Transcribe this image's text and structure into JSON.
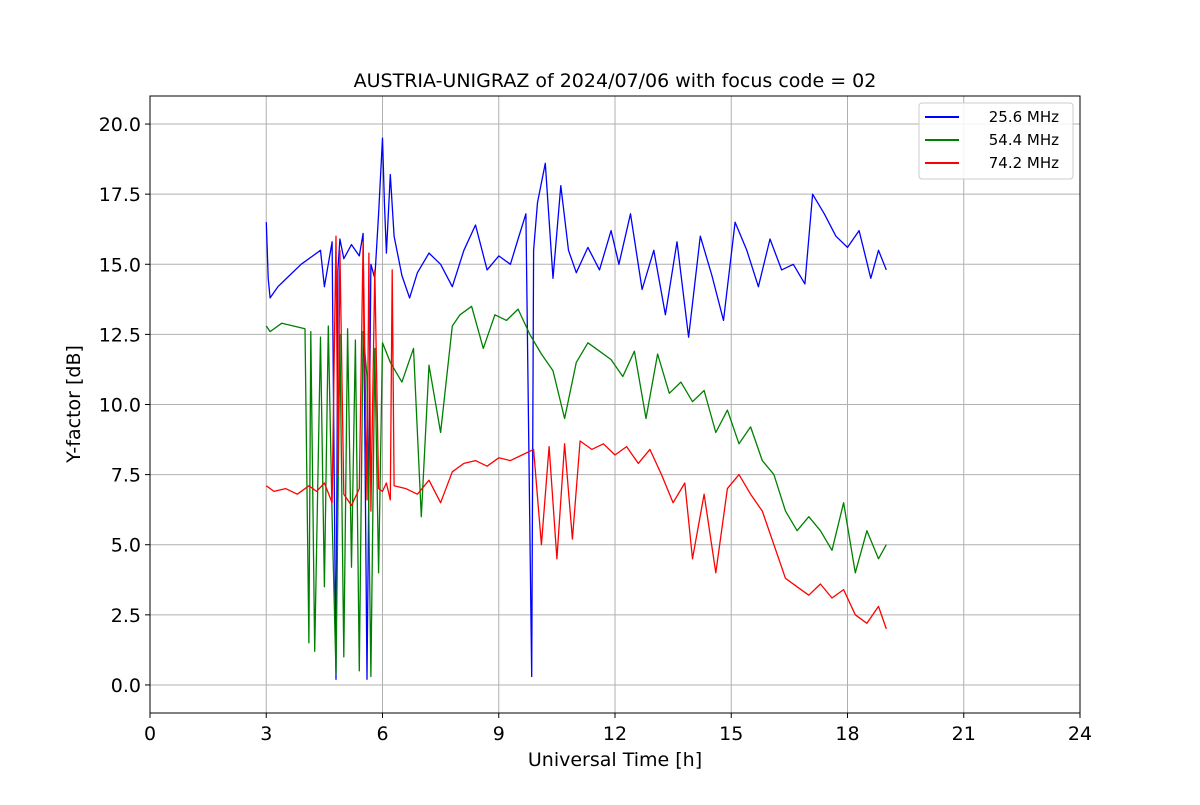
{
  "chart_data": {
    "type": "line",
    "title": "AUSTRIA-UNIGRAZ of 2024/07/06 with focus code = 02",
    "xlabel": "Universal Time [h]",
    "ylabel": "Y-factor [dB]",
    "xlim": [
      0,
      24
    ],
    "ylim": [
      -1,
      21
    ],
    "xticks": [
      0,
      3,
      6,
      9,
      12,
      15,
      18,
      21,
      24
    ],
    "yticks": [
      0.0,
      2.5,
      5.0,
      7.5,
      10.0,
      12.5,
      15.0,
      17.5,
      20.0
    ],
    "xtick_labels": [
      "0",
      "3",
      "6",
      "9",
      "12",
      "15",
      "18",
      "21",
      "24"
    ],
    "ytick_labels": [
      "0.0",
      "2.5",
      "5.0",
      "7.5",
      "10.0",
      "12.5",
      "15.0",
      "17.5",
      "20.0"
    ],
    "grid": true,
    "legend_position": "top-right",
    "series": [
      {
        "name": "25.6 MHz",
        "color": "#0000ff",
        "x": [
          3.0,
          3.05,
          3.1,
          3.3,
          3.6,
          3.9,
          4.2,
          4.4,
          4.5,
          4.7,
          4.8,
          4.85,
          4.9,
          5.0,
          5.2,
          5.4,
          5.5,
          5.6,
          5.7,
          5.8,
          5.9,
          6.0,
          6.05,
          6.1,
          6.2,
          6.3,
          6.5,
          6.7,
          6.9,
          7.2,
          7.5,
          7.8,
          8.1,
          8.4,
          8.7,
          9.0,
          9.3,
          9.5,
          9.7,
          9.85,
          9.9,
          10.0,
          10.2,
          10.4,
          10.6,
          10.8,
          11.0,
          11.3,
          11.6,
          11.9,
          12.1,
          12.4,
          12.7,
          13.0,
          13.3,
          13.6,
          13.9,
          14.2,
          14.5,
          14.8,
          15.1,
          15.4,
          15.7,
          16.0,
          16.3,
          16.6,
          16.9,
          17.1,
          17.4,
          17.7,
          18.0,
          18.3,
          18.6,
          18.8,
          19.0
        ],
        "y": [
          16.5,
          14.5,
          13.8,
          14.2,
          14.6,
          15.0,
          15.3,
          15.5,
          14.2,
          15.8,
          0.2,
          14.8,
          15.9,
          15.2,
          15.7,
          15.3,
          16.1,
          0.2,
          15.0,
          14.5,
          16.8,
          19.5,
          17.2,
          15.4,
          18.2,
          16.0,
          14.6,
          13.8,
          14.7,
          15.4,
          15.0,
          14.2,
          15.5,
          16.4,
          14.8,
          15.3,
          15.0,
          15.9,
          16.8,
          0.3,
          15.5,
          17.2,
          18.6,
          14.5,
          17.8,
          15.5,
          14.7,
          15.6,
          14.8,
          16.2,
          15.0,
          16.8,
          14.1,
          15.5,
          13.2,
          15.8,
          12.4,
          16.0,
          14.6,
          13.0,
          16.5,
          15.5,
          14.2,
          15.9,
          14.8,
          15.0,
          14.3,
          17.5,
          16.8,
          16.0,
          15.6,
          16.2,
          14.5,
          15.5,
          14.8
        ]
      },
      {
        "name": "54.4 MHz",
        "color": "#008000",
        "x": [
          3.0,
          3.1,
          3.4,
          3.7,
          4.0,
          4.1,
          4.15,
          4.25,
          4.4,
          4.5,
          4.6,
          4.7,
          4.8,
          4.9,
          5.0,
          5.1,
          5.2,
          5.3,
          5.4,
          5.5,
          5.6,
          5.7,
          5.8,
          5.9,
          6.0,
          6.2,
          6.5,
          6.8,
          7.0,
          7.2,
          7.5,
          7.8,
          8.0,
          8.3,
          8.6,
          8.9,
          9.2,
          9.5,
          9.8,
          10.1,
          10.4,
          10.7,
          11.0,
          11.3,
          11.6,
          11.9,
          12.2,
          12.5,
          12.8,
          13.1,
          13.4,
          13.7,
          14.0,
          14.3,
          14.6,
          14.9,
          15.2,
          15.5,
          15.8,
          16.1,
          16.4,
          16.7,
          17.0,
          17.3,
          17.6,
          17.9,
          18.2,
          18.5,
          18.8,
          19.0
        ],
        "y": [
          12.8,
          12.6,
          12.9,
          12.8,
          12.7,
          1.5,
          12.6,
          1.2,
          12.4,
          3.5,
          12.8,
          6.0,
          0.4,
          12.5,
          1.0,
          12.7,
          4.2,
          12.3,
          0.5,
          12.6,
          11.0,
          0.3,
          12.0,
          4.0,
          12.2,
          11.5,
          10.8,
          12.0,
          6.0,
          11.4,
          9.0,
          12.8,
          13.2,
          13.5,
          12.0,
          13.2,
          13.0,
          13.4,
          12.5,
          11.8,
          11.2,
          9.5,
          11.5,
          12.2,
          11.9,
          11.6,
          11.0,
          11.9,
          9.5,
          11.8,
          10.4,
          10.8,
          10.1,
          10.5,
          9.0,
          9.8,
          8.6,
          9.2,
          8.0,
          7.5,
          6.2,
          5.5,
          6.0,
          5.5,
          4.8,
          6.5,
          4.0,
          5.5,
          4.5,
          5.0
        ]
      },
      {
        "name": "74.2 MHz",
        "color": "#ff0000",
        "x": [
          3.0,
          3.2,
          3.5,
          3.8,
          4.1,
          4.3,
          4.5,
          4.7,
          4.8,
          4.85,
          4.9,
          5.0,
          5.2,
          5.4,
          5.5,
          5.6,
          5.65,
          5.7,
          5.8,
          5.9,
          6.0,
          6.1,
          6.2,
          6.25,
          6.3,
          6.6,
          6.9,
          7.2,
          7.5,
          7.8,
          8.1,
          8.4,
          8.7,
          9.0,
          9.3,
          9.6,
          9.9,
          10.1,
          10.3,
          10.5,
          10.7,
          10.9,
          11.1,
          11.4,
          11.7,
          12.0,
          12.3,
          12.6,
          12.9,
          13.2,
          13.5,
          13.8,
          14.0,
          14.3,
          14.6,
          14.9,
          15.2,
          15.5,
          15.8,
          16.1,
          16.4,
          16.7,
          17.0,
          17.3,
          17.6,
          17.9,
          18.2,
          18.5,
          18.8,
          19.0
        ],
        "y": [
          7.1,
          6.9,
          7.0,
          6.8,
          7.1,
          6.9,
          7.2,
          6.5,
          16.0,
          7.5,
          15.5,
          6.8,
          6.4,
          7.0,
          15.8,
          6.6,
          15.4,
          6.2,
          14.8,
          7.0,
          6.9,
          7.2,
          6.6,
          14.8,
          7.1,
          7.0,
          6.8,
          7.3,
          6.5,
          7.6,
          7.9,
          8.0,
          7.8,
          8.1,
          8.0,
          8.2,
          8.4,
          5.0,
          8.5,
          4.5,
          8.6,
          5.2,
          8.7,
          8.4,
          8.6,
          8.2,
          8.5,
          7.9,
          8.4,
          7.5,
          6.5,
          7.2,
          4.5,
          6.8,
          4.0,
          7.0,
          7.5,
          6.8,
          6.2,
          5.0,
          3.8,
          3.5,
          3.2,
          3.6,
          3.1,
          3.4,
          2.5,
          2.2,
          2.8,
          2.0
        ]
      }
    ]
  }
}
